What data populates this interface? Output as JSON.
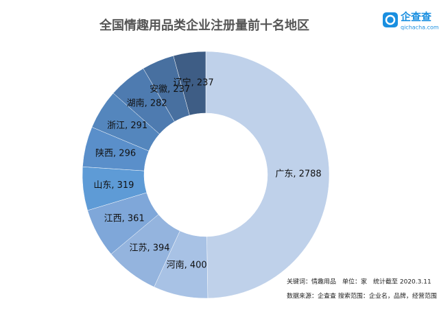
{
  "chart_data": {
    "type": "pie",
    "title": "全国情趣用品类企业注册量前十名地区",
    "logo": {
      "name": "企查查",
      "url": "qichacha.com"
    },
    "notes": [
      "关键词：情趣用品　单位：家　统计截至 2020.3.11",
      "数据来源：企查查 搜索范围：企业名，品牌，经营范围"
    ],
    "values": [
      2788,
      400,
      394,
      361,
      319,
      296,
      291,
      282,
      237,
      237
    ],
    "value_labels": [
      "广东, 2788",
      "河南, 400",
      "江苏, 394",
      "江西, 361",
      "山东, 319",
      "陕西, 296",
      "浙江, 291",
      "湖南, 282",
      "安徽, 237",
      "辽宁, 237"
    ],
    "colors": [
      "#bfd1ea",
      "#a8c2e5",
      "#94b4de",
      "#7fa7d9",
      "#5e9bd6",
      "#5a8fca",
      "#5486bd",
      "#4e7bb0",
      "#4870a0",
      "#3e5d85"
    ],
    "donut": true
  }
}
